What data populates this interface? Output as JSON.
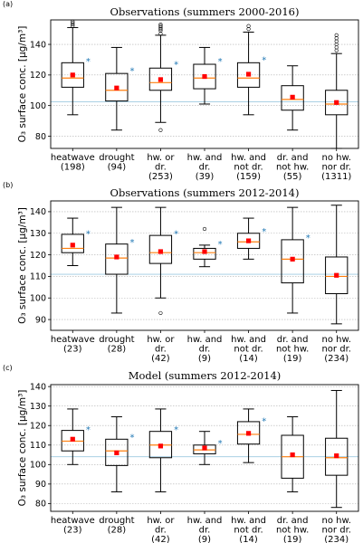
{
  "colors": {
    "box": "#000000",
    "median": "#ff7f0e",
    "mean": "#ff0000",
    "star": "#1f77b4",
    "reference": "#9ecae1"
  },
  "chart_data": [
    {
      "panel_label": "(a)",
      "type": "box",
      "title": "Observations (summers 2000-2016)",
      "ylabel": "O₃ surface conc. [µg/m³]",
      "ylim": [
        72,
        156
      ],
      "yticks": [
        80,
        100,
        120,
        140
      ],
      "reference_line": 102.5,
      "categories": [
        {
          "label": [
            "heatwave",
            "(198)"
          ],
          "whisker_low": 94,
          "q1": 112,
          "median": 118,
          "q3": 128,
          "whisker_high": 151,
          "mean": 120,
          "outliers": [
            152,
            153,
            154,
            155
          ],
          "star": true,
          "star_y": 129
        },
        {
          "label": [
            "drought",
            "(94)"
          ],
          "whisker_low": 84,
          "q1": 103,
          "median": 110,
          "q3": 121,
          "whisker_high": 138,
          "mean": 111.5,
          "outliers": [],
          "star": true,
          "star_y": 123
        },
        {
          "label": [
            "hw. or",
            "dr.",
            "(253)"
          ],
          "whisker_low": 89,
          "q1": 110,
          "median": 115,
          "q3": 124.5,
          "whisker_high": 146,
          "mean": 117,
          "outliers": [
            84,
            147,
            149,
            150,
            151,
            152,
            153
          ],
          "star": true,
          "star_y": 127
        },
        {
          "label": [
            "hw. and",
            "dr.",
            "(39)"
          ],
          "whisker_low": 101,
          "q1": 111,
          "median": 118,
          "q3": 127,
          "whisker_high": 138,
          "mean": 119,
          "outliers": [],
          "star": true,
          "star_y": 129
        },
        {
          "label": [
            "hw. and",
            "not dr.",
            "(159)"
          ],
          "whisker_low": 94,
          "q1": 112,
          "median": 118,
          "q3": 128,
          "whisker_high": 148,
          "mean": 120.5,
          "outliers": [
            150,
            152
          ],
          "star": true,
          "star_y": 130
        },
        {
          "label": [
            "dr. and",
            "not hw.",
            "(55)"
          ],
          "whisker_low": 84,
          "q1": 97,
          "median": 104,
          "q3": 113,
          "whisker_high": 126,
          "mean": 105.5,
          "outliers": [],
          "star": false,
          "star_y": null
        },
        {
          "label": [
            "no hw.",
            "nor dr.",
            "(1311)"
          ],
          "whisker_low": 72,
          "q1": 94,
          "median": 101,
          "q3": 110,
          "whisker_high": 134,
          "mean": 102,
          "outliers": [
            136,
            138,
            140,
            142,
            144,
            146
          ],
          "star": false,
          "star_y": null
        }
      ]
    },
    {
      "panel_label": "(b)",
      "type": "box",
      "title": "Observations (summers 2012-2014)",
      "ylabel": "O₃ surface conc. [µg/m³]",
      "ylim": [
        85,
        145
      ],
      "yticks": [
        90,
        100,
        110,
        120,
        130,
        140
      ],
      "reference_line": 111,
      "categories": [
        {
          "label": [
            "heatwave",
            "(23)"
          ],
          "whisker_low": 115,
          "q1": 121,
          "median": 123,
          "q3": 129.5,
          "whisker_high": 137,
          "mean": 124.5,
          "outliers": [],
          "star": true,
          "star_y": 130
        },
        {
          "label": [
            "drought",
            "(28)"
          ],
          "whisker_low": 93,
          "q1": 111,
          "median": 118.5,
          "q3": 125,
          "whisker_high": 142,
          "mean": 119,
          "outliers": [],
          "star": true,
          "star_y": 126
        },
        {
          "label": [
            "hw. or",
            "dr.",
            "(42)"
          ],
          "whisker_low": 100,
          "q1": 116,
          "median": 121,
          "q3": 129,
          "whisker_high": 142,
          "mean": 121.5,
          "outliers": [
            93
          ],
          "star": true,
          "star_y": 130
        },
        {
          "label": [
            "hw. and",
            "dr.",
            "(9)"
          ],
          "whisker_low": 114.5,
          "q1": 118,
          "median": 121,
          "q3": 123,
          "whisker_high": 124.5,
          "mean": 121.5,
          "outliers": [
            132
          ],
          "star": true,
          "star_y": 125
        },
        {
          "label": [
            "hw. and",
            "not dr.",
            "(14)"
          ],
          "whisker_low": 118,
          "q1": 123,
          "median": 126,
          "q3": 130,
          "whisker_high": 137,
          "mean": 126.5,
          "outliers": [],
          "star": true,
          "star_y": 131
        },
        {
          "label": [
            "dr. and",
            "not hw.",
            "(19)"
          ],
          "whisker_low": 93,
          "q1": 107,
          "median": 118,
          "q3": 127,
          "whisker_high": 142,
          "mean": 118,
          "outliers": [],
          "star": true,
          "star_y": 128
        },
        {
          "label": [
            "no hw.",
            "nor dr.",
            "(234)"
          ],
          "whisker_low": 88,
          "q1": 102,
          "median": 110,
          "q3": 119,
          "whisker_high": 143,
          "mean": 110.5,
          "outliers": [],
          "star": false,
          "star_y": null
        }
      ]
    },
    {
      "panel_label": "(c)",
      "type": "box",
      "title": "Model (summers 2012-2014)",
      "ylabel": "O₃ surface conc. [µg/m³]",
      "ylim": [
        76,
        141
      ],
      "yticks": [
        80,
        90,
        100,
        110,
        120,
        130,
        140
      ],
      "reference_line": 104,
      "categories": [
        {
          "label": [
            "heatwave",
            "(23)"
          ],
          "whisker_low": 100,
          "q1": 107,
          "median": 112,
          "q3": 117.5,
          "whisker_high": 128.5,
          "mean": 113,
          "outliers": [],
          "star": true,
          "star_y": 118
        },
        {
          "label": [
            "drought",
            "(28)"
          ],
          "whisker_low": 86,
          "q1": 99.5,
          "median": 107,
          "q3": 113,
          "whisker_high": 124.5,
          "mean": 106,
          "outliers": [],
          "star": true,
          "star_y": 114
        },
        {
          "label": [
            "hw. or",
            "dr.",
            "(42)"
          ],
          "whisker_low": 86,
          "q1": 103.5,
          "median": 110,
          "q3": 117,
          "whisker_high": 128.5,
          "mean": 109.5,
          "outliers": [],
          "star": true,
          "star_y": 118
        },
        {
          "label": [
            "hw. and",
            "dr.",
            "(9)"
          ],
          "whisker_low": 100,
          "q1": 105.5,
          "median": 107.5,
          "q3": 110,
          "whisker_high": 117,
          "mean": 108.5,
          "outliers": [],
          "star": true,
          "star_y": 111
        },
        {
          "label": [
            "hw. and",
            "not dr.",
            "(14)"
          ],
          "whisker_low": 101,
          "q1": 110.5,
          "median": 115.5,
          "q3": 122,
          "whisker_high": 128.5,
          "mean": 116,
          "outliers": [],
          "star": true,
          "star_y": 122.5
        },
        {
          "label": [
            "dr. and",
            "not hw.",
            "(19)"
          ],
          "whisker_low": 86,
          "q1": 93,
          "median": 104,
          "q3": 115,
          "whisker_high": 124.5,
          "mean": 105,
          "outliers": [],
          "star": false,
          "star_y": null
        },
        {
          "label": [
            "no hw.",
            "nor dr.",
            "(234)"
          ],
          "whisker_low": 78,
          "q1": 94.5,
          "median": 103.5,
          "q3": 113.5,
          "whisker_high": 138,
          "mean": 104.5,
          "outliers": [],
          "star": false,
          "star_y": null
        }
      ]
    }
  ]
}
